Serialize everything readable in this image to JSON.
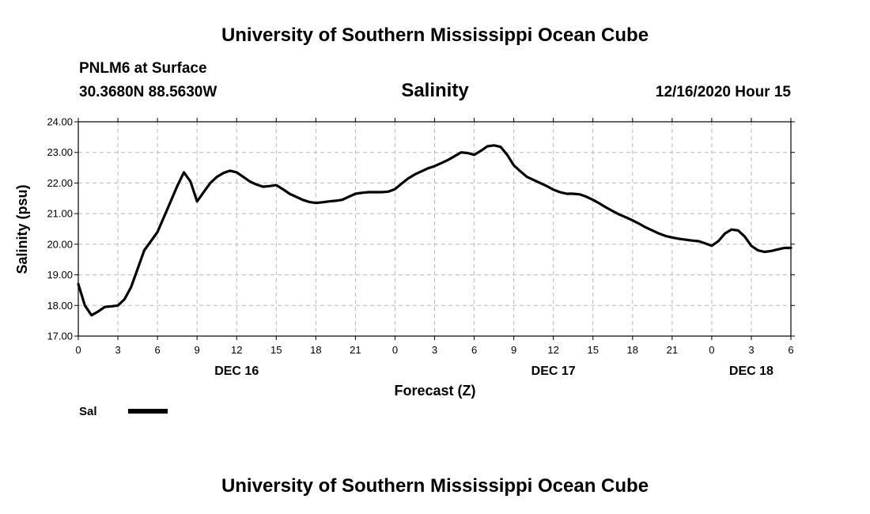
{
  "header": {
    "title_top": "University of Southern Mississippi Ocean Cube",
    "station": "PNLM6 at Surface",
    "coords": "30.3680N 88.5630W",
    "timestamp": "12/16/2020 Hour 15"
  },
  "footer": {
    "title_bottom": "University of Southern Mississippi Ocean Cube"
  },
  "chart_data": {
    "type": "line",
    "title": "Salinity",
    "xlabel": "Forecast (Z)",
    "ylabel": "Salinity (psu)",
    "xlim": [
      0,
      54
    ],
    "ylim": [
      17,
      24
    ],
    "grid": true,
    "y_ticks": [
      "17.00",
      "18.00",
      "19.00",
      "20.00",
      "21.00",
      "22.00",
      "23.00",
      "24.00"
    ],
    "x_ticks": [
      "0",
      "3",
      "6",
      "9",
      "12",
      "15",
      "18",
      "21",
      "0",
      "3",
      "6",
      "9",
      "12",
      "15",
      "18",
      "21",
      "0",
      "3",
      "6"
    ],
    "date_labels": [
      {
        "label": "DEC 16",
        "hour": 12
      },
      {
        "label": "DEC 17",
        "hour": 36
      },
      {
        "label": "DEC 18",
        "hour": 51
      }
    ],
    "legend": {
      "position": "bottom-left",
      "entries": [
        "Sal"
      ]
    },
    "series": [
      {
        "name": "Sal",
        "color": "#000000",
        "x": [
          0,
          0.5,
          1,
          1.5,
          2,
          2.5,
          3,
          3.5,
          4,
          4.5,
          5,
          5.5,
          6,
          6.5,
          7,
          7.5,
          8,
          8.5,
          9,
          9.5,
          10,
          10.5,
          11,
          11.5,
          12,
          12.5,
          13,
          13.5,
          14,
          14.5,
          15,
          15.5,
          16,
          16.5,
          17,
          17.5,
          18,
          18.5,
          19,
          19.5,
          20,
          20.5,
          21,
          21.5,
          22,
          22.5,
          23,
          23.5,
          24,
          24.5,
          25,
          25.5,
          26,
          26.5,
          27,
          27.5,
          28,
          28.5,
          29,
          29.5,
          30,
          30.5,
          31,
          31.5,
          32,
          32.5,
          33,
          33.5,
          34,
          34.5,
          35,
          35.5,
          36,
          36.5,
          37,
          37.5,
          38,
          38.5,
          39,
          39.5,
          40,
          40.5,
          41,
          41.5,
          42,
          42.5,
          43,
          43.5,
          44,
          44.5,
          45,
          45.5,
          46,
          46.5,
          47,
          47.5,
          48,
          48.5,
          49,
          49.5,
          50,
          50.5,
          51,
          51.5,
          52,
          52.5,
          53,
          53.5,
          54
        ],
        "values": [
          18.7,
          18.0,
          17.68,
          17.8,
          17.95,
          17.97,
          18.0,
          18.2,
          18.6,
          19.2,
          19.8,
          20.1,
          20.4,
          20.9,
          21.4,
          21.9,
          22.35,
          22.05,
          21.4,
          21.7,
          22.0,
          22.2,
          22.33,
          22.4,
          22.35,
          22.2,
          22.05,
          21.95,
          21.88,
          21.9,
          21.93,
          21.8,
          21.65,
          21.55,
          21.45,
          21.38,
          21.35,
          21.37,
          21.4,
          21.42,
          21.45,
          21.55,
          21.65,
          21.68,
          21.7,
          21.7,
          21.7,
          21.72,
          21.8,
          21.98,
          22.15,
          22.28,
          22.38,
          22.48,
          22.55,
          22.65,
          22.75,
          22.87,
          23.0,
          22.98,
          22.92,
          23.05,
          23.2,
          23.23,
          23.18,
          22.92,
          22.58,
          22.38,
          22.2,
          22.1,
          22.0,
          21.9,
          21.78,
          21.7,
          21.65,
          21.65,
          21.63,
          21.55,
          21.45,
          21.33,
          21.2,
          21.08,
          20.97,
          20.88,
          20.78,
          20.67,
          20.55,
          20.45,
          20.35,
          20.27,
          20.22,
          20.18,
          20.15,
          20.12,
          20.1,
          20.03,
          19.95,
          20.1,
          20.35,
          20.48,
          20.45,
          20.25,
          19.95,
          19.8,
          19.75,
          19.78,
          19.83,
          19.88,
          19.88
        ]
      }
    ]
  }
}
